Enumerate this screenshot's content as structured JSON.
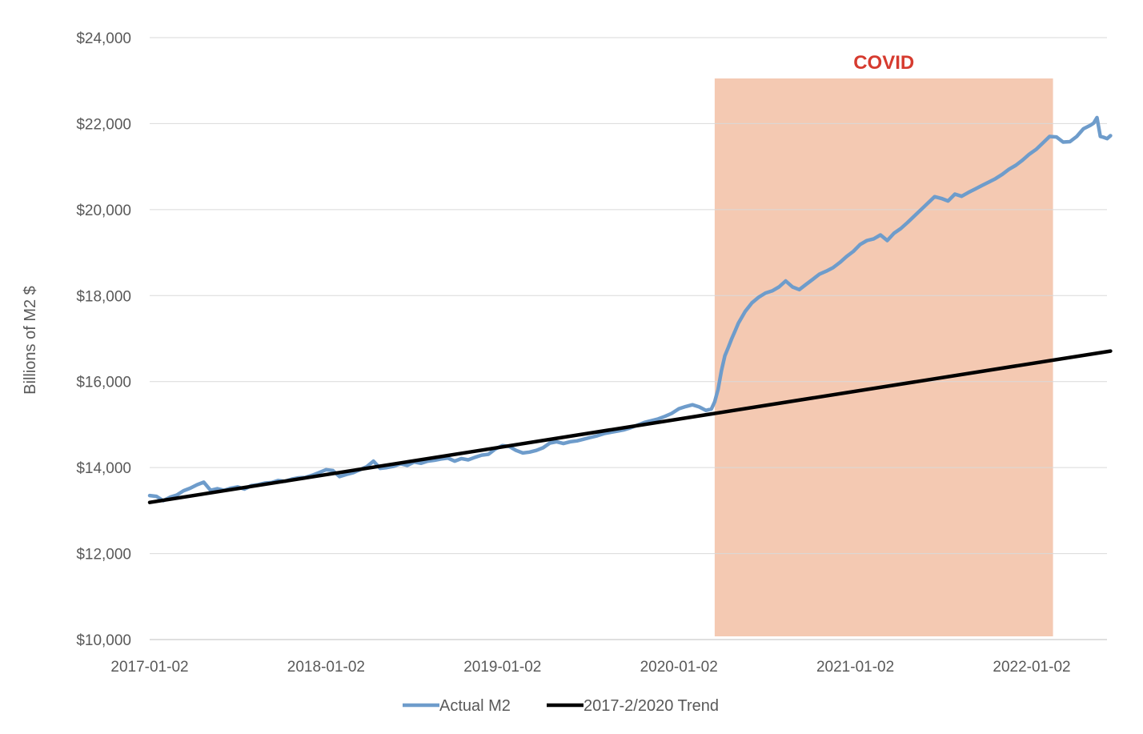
{
  "chart_data": {
    "type": "line",
    "title": "",
    "xlabel": "",
    "ylabel": "Billions of M2 $",
    "ylim": [
      10000,
      24000
    ],
    "xlim": [
      "2017-01-02",
      "2022-05-30"
    ],
    "y_ticks": [
      "$10,000",
      "$12,000",
      "$14,000",
      "$16,000",
      "$18,000",
      "$20,000",
      "$22,000",
      "$24,000"
    ],
    "y_tick_values": [
      10000,
      12000,
      14000,
      16000,
      18000,
      20000,
      22000,
      24000
    ],
    "x_ticks": [
      "2017-01-02",
      "2018-01-02",
      "2019-01-02",
      "2020-01-02",
      "2021-01-02",
      "2022-01-02"
    ],
    "grid": "horizontal",
    "legend_position": "bottom",
    "annotation": {
      "label": "COVID",
      "start": "2020-03-16",
      "end": "2022-02-14",
      "ymax": 23050,
      "fill_color": "#f4c9b2",
      "label_color": "#d63b2f"
    },
    "series": [
      {
        "name": "Actual M2",
        "color": "#6e9ccb",
        "points": [
          [
            "2017-01-02",
            13350
          ],
          [
            "2017-01-16",
            13330
          ],
          [
            "2017-01-30",
            13230
          ],
          [
            "2017-02-13",
            13310
          ],
          [
            "2017-02-27",
            13360
          ],
          [
            "2017-03-13",
            13460
          ],
          [
            "2017-03-27",
            13520
          ],
          [
            "2017-04-10",
            13600
          ],
          [
            "2017-04-24",
            13660
          ],
          [
            "2017-05-08",
            13470
          ],
          [
            "2017-05-22",
            13510
          ],
          [
            "2017-06-05",
            13470
          ],
          [
            "2017-06-19",
            13520
          ],
          [
            "2017-07-03",
            13550
          ],
          [
            "2017-07-17",
            13500
          ],
          [
            "2017-07-31",
            13580
          ],
          [
            "2017-08-14",
            13600
          ],
          [
            "2017-08-28",
            13640
          ],
          [
            "2017-09-11",
            13650
          ],
          [
            "2017-09-25",
            13700
          ],
          [
            "2017-10-09",
            13680
          ],
          [
            "2017-10-23",
            13730
          ],
          [
            "2017-11-06",
            13760
          ],
          [
            "2017-11-20",
            13770
          ],
          [
            "2017-12-04",
            13820
          ],
          [
            "2017-12-18",
            13880
          ],
          [
            "2018-01-02",
            13950
          ],
          [
            "2018-01-16",
            13930
          ],
          [
            "2018-01-30",
            13790
          ],
          [
            "2018-02-13",
            13840
          ],
          [
            "2018-02-27",
            13880
          ],
          [
            "2018-03-13",
            13950
          ],
          [
            "2018-03-27",
            14020
          ],
          [
            "2018-04-10",
            14150
          ],
          [
            "2018-04-24",
            13980
          ],
          [
            "2018-05-08",
            14000
          ],
          [
            "2018-05-22",
            14030
          ],
          [
            "2018-06-05",
            14090
          ],
          [
            "2018-06-19",
            14050
          ],
          [
            "2018-07-03",
            14130
          ],
          [
            "2018-07-17",
            14100
          ],
          [
            "2018-07-31",
            14150
          ],
          [
            "2018-08-14",
            14170
          ],
          [
            "2018-08-28",
            14200
          ],
          [
            "2018-09-11",
            14220
          ],
          [
            "2018-09-25",
            14150
          ],
          [
            "2018-10-09",
            14210
          ],
          [
            "2018-10-23",
            14180
          ],
          [
            "2018-11-06",
            14240
          ],
          [
            "2018-11-20",
            14290
          ],
          [
            "2018-12-04",
            14310
          ],
          [
            "2018-12-18",
            14430
          ],
          [
            "2019-01-02",
            14510
          ],
          [
            "2019-01-16",
            14490
          ],
          [
            "2019-01-30",
            14400
          ],
          [
            "2019-02-13",
            14340
          ],
          [
            "2019-02-27",
            14360
          ],
          [
            "2019-03-13",
            14400
          ],
          [
            "2019-03-27",
            14460
          ],
          [
            "2019-04-10",
            14570
          ],
          [
            "2019-04-24",
            14600
          ],
          [
            "2019-05-08",
            14560
          ],
          [
            "2019-05-22",
            14600
          ],
          [
            "2019-06-05",
            14620
          ],
          [
            "2019-06-19",
            14660
          ],
          [
            "2019-07-03",
            14700
          ],
          [
            "2019-07-17",
            14740
          ],
          [
            "2019-07-31",
            14790
          ],
          [
            "2019-08-14",
            14820
          ],
          [
            "2019-08-28",
            14850
          ],
          [
            "2019-09-11",
            14880
          ],
          [
            "2019-09-25",
            14930
          ],
          [
            "2019-10-09",
            14990
          ],
          [
            "2019-10-23",
            15050
          ],
          [
            "2019-11-06",
            15090
          ],
          [
            "2019-11-20",
            15130
          ],
          [
            "2019-12-04",
            15190
          ],
          [
            "2019-12-18",
            15260
          ],
          [
            "2020-01-02",
            15370
          ],
          [
            "2020-01-16",
            15420
          ],
          [
            "2020-01-30",
            15460
          ],
          [
            "2020-02-13",
            15410
          ],
          [
            "2020-02-27",
            15330
          ],
          [
            "2020-03-09",
            15360
          ],
          [
            "2020-03-16",
            15530
          ],
          [
            "2020-03-23",
            15820
          ],
          [
            "2020-03-30",
            16250
          ],
          [
            "2020-04-06",
            16600
          ],
          [
            "2020-04-13",
            16790
          ],
          [
            "2020-04-20",
            16990
          ],
          [
            "2020-04-27",
            17170
          ],
          [
            "2020-05-04",
            17360
          ],
          [
            "2020-05-18",
            17630
          ],
          [
            "2020-06-01",
            17830
          ],
          [
            "2020-06-15",
            17960
          ],
          [
            "2020-06-29",
            18060
          ],
          [
            "2020-07-13",
            18110
          ],
          [
            "2020-07-27",
            18200
          ],
          [
            "2020-08-10",
            18340
          ],
          [
            "2020-08-24",
            18200
          ],
          [
            "2020-09-07",
            18140
          ],
          [
            "2020-09-21",
            18260
          ],
          [
            "2020-10-05",
            18380
          ],
          [
            "2020-10-19",
            18500
          ],
          [
            "2020-11-02",
            18570
          ],
          [
            "2020-11-16",
            18650
          ],
          [
            "2020-11-30",
            18770
          ],
          [
            "2020-12-14",
            18910
          ],
          [
            "2020-12-28",
            19030
          ],
          [
            "2021-01-11",
            19190
          ],
          [
            "2021-01-25",
            19280
          ],
          [
            "2021-02-08",
            19320
          ],
          [
            "2021-02-22",
            19410
          ],
          [
            "2021-03-08",
            19280
          ],
          [
            "2021-03-22",
            19450
          ],
          [
            "2021-04-05",
            19560
          ],
          [
            "2021-04-19",
            19700
          ],
          [
            "2021-05-03",
            19850
          ],
          [
            "2021-05-17",
            20000
          ],
          [
            "2021-05-31",
            20150
          ],
          [
            "2021-06-14",
            20300
          ],
          [
            "2021-06-28",
            20260
          ],
          [
            "2021-07-12",
            20200
          ],
          [
            "2021-07-26",
            20360
          ],
          [
            "2021-08-09",
            20310
          ],
          [
            "2021-08-23",
            20400
          ],
          [
            "2021-09-06",
            20480
          ],
          [
            "2021-09-20",
            20560
          ],
          [
            "2021-10-04",
            20640
          ],
          [
            "2021-10-18",
            20720
          ],
          [
            "2021-11-01",
            20820
          ],
          [
            "2021-11-15",
            20940
          ],
          [
            "2021-11-29",
            21030
          ],
          [
            "2021-12-13",
            21150
          ],
          [
            "2021-12-27",
            21290
          ],
          [
            "2022-01-10",
            21400
          ],
          [
            "2022-01-24",
            21550
          ],
          [
            "2022-02-07",
            21700
          ],
          [
            "2022-02-21",
            21690
          ],
          [
            "2022-03-07",
            21570
          ],
          [
            "2022-03-21",
            21580
          ],
          [
            "2022-04-04",
            21700
          ],
          [
            "2022-04-18",
            21880
          ],
          [
            "2022-05-02",
            21960
          ],
          [
            "2022-05-09",
            22010
          ],
          [
            "2022-05-16",
            22140
          ],
          [
            "2022-05-23",
            21700
          ],
          [
            "2022-05-30",
            21680
          ],
          [
            "2022-06-06",
            21650
          ],
          [
            "2022-06-13",
            21720
          ]
        ]
      },
      {
        "name": "2017-2/2020 Trend",
        "color": "#000000",
        "points": [
          [
            "2017-01-02",
            13190
          ],
          [
            "2022-06-13",
            16710
          ]
        ]
      }
    ]
  }
}
